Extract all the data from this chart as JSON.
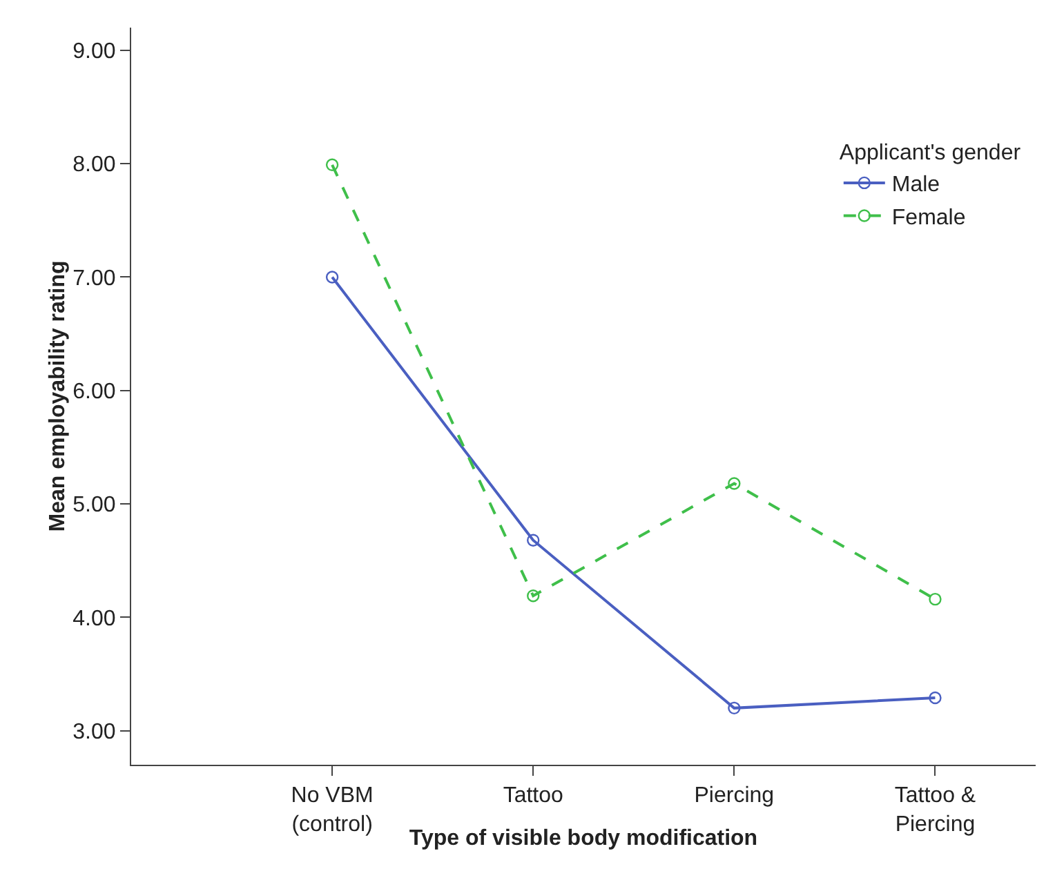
{
  "chart_data": {
    "type": "line",
    "xlabel": "Type of visible body modification",
    "ylabel": "Mean employability rating",
    "legend_title": "Applicant's gender",
    "categories": [
      "No VBM\n(control)",
      "Tattoo",
      "Piercing",
      "Tattoo &\nPiercing"
    ],
    "series": [
      {
        "name": "Male",
        "color": "#4a5fc1",
        "values": [
          7.0,
          4.68,
          3.2,
          3.29
        ],
        "line_style": "solid"
      },
      {
        "name": "Female",
        "color": "#3fbf4a",
        "values": [
          7.99,
          4.19,
          5.18,
          4.16
        ],
        "line_style": "dashed"
      }
    ],
    "ylim": [
      2.7,
      9.2
    ],
    "yticks": [
      {
        "value": 3,
        "label": "3.00"
      },
      {
        "value": 4,
        "label": "4.00"
      },
      {
        "value": 5,
        "label": "5.00"
      },
      {
        "value": 6,
        "label": "6.00"
      },
      {
        "value": 7,
        "label": "7.00"
      },
      {
        "value": 8,
        "label": "8.00"
      },
      {
        "value": 9,
        "label": "9.00"
      }
    ],
    "marker": "circle",
    "grid": false,
    "legend": "top right"
  }
}
